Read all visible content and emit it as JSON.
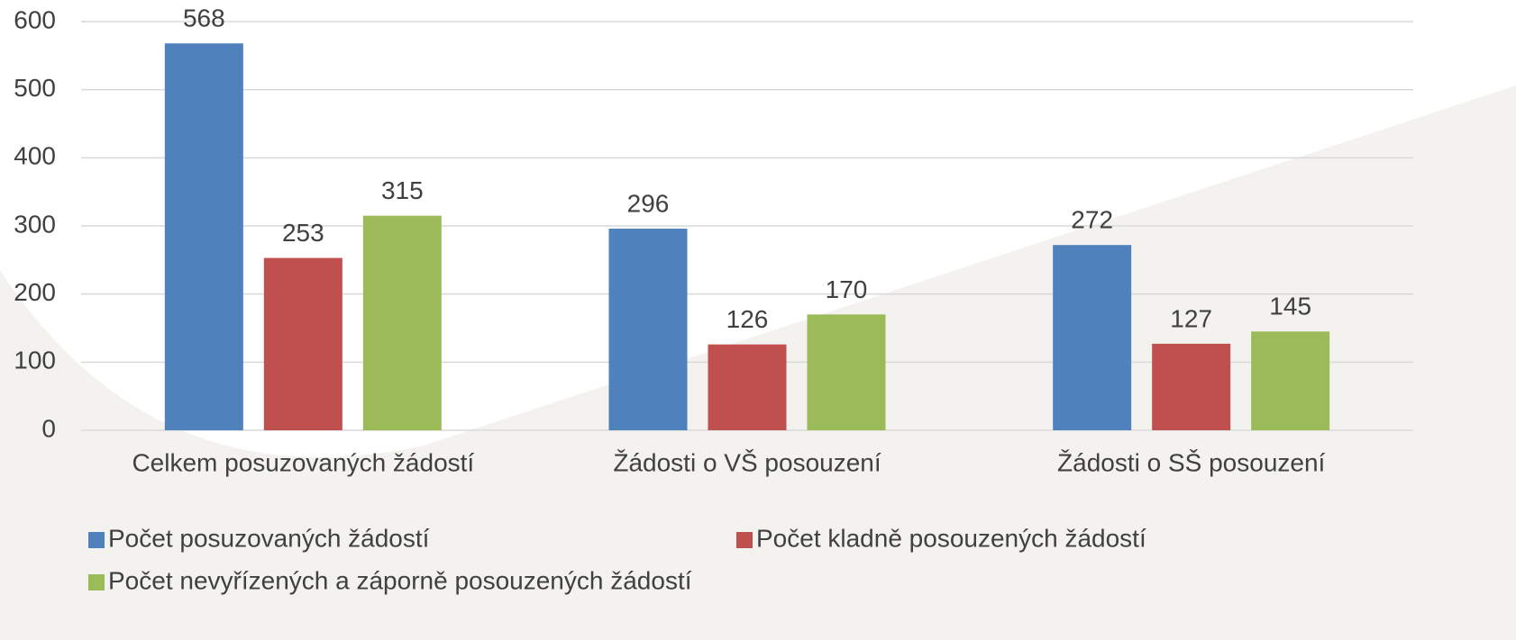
{
  "chart_data": {
    "type": "bar",
    "categories": [
      "Celkem posuzovaných žádostí",
      "Žádosti o VŠ posouzení",
      "Žádosti o SŠ posouzení"
    ],
    "series": [
      {
        "name": "Počet posuzovaných žádostí",
        "color": "#4f81bd",
        "values": [
          568,
          296,
          272
        ]
      },
      {
        "name": "Počet kladně posouzených žádostí",
        "color": "#c0504d",
        "values": [
          253,
          126,
          127
        ]
      },
      {
        "name": "Počet nevyřízených a záporně posouzených žádostí",
        "color": "#9bbb59",
        "values": [
          315,
          170,
          145
        ]
      }
    ],
    "ylim": [
      0,
      600
    ],
    "yticks": [
      0,
      100,
      200,
      300,
      400,
      500,
      600
    ],
    "grid": true,
    "legend": "bottom"
  }
}
